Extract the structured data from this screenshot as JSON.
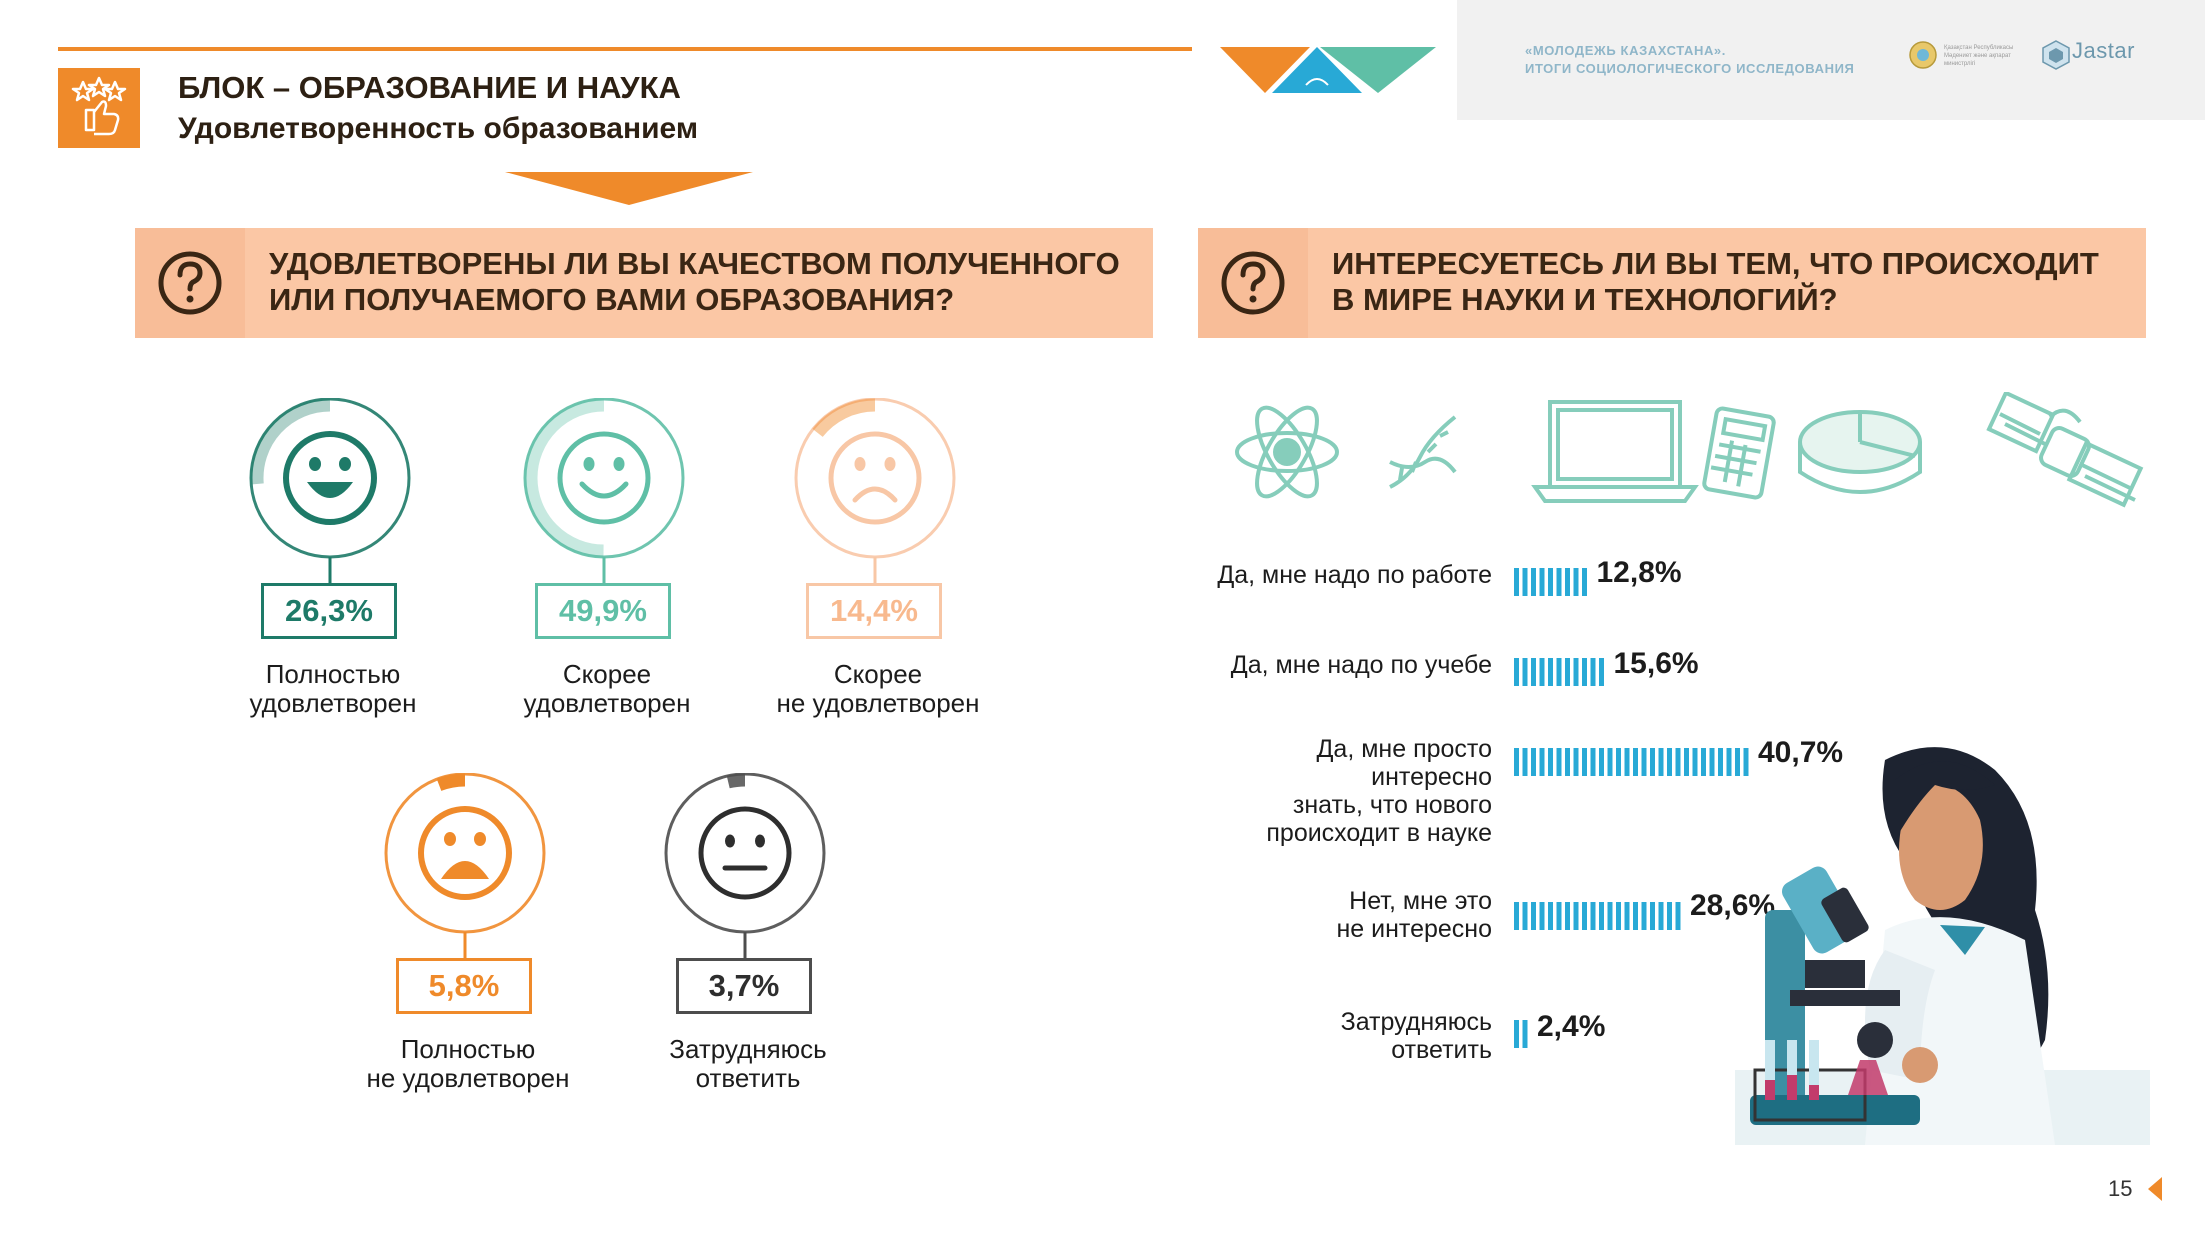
{
  "header": {
    "brand_lines": [
      "«Молодежь Казахстана».",
      "Итоги социологического исследования"
    ],
    "emblem_caption": "Қазақстан Республикасы Мәдениет және ақпарат министрлігі",
    "jastar_label": "Jastar",
    "section_title": "БЛОК – ОБРАЗОВАНИЕ И НАУКА",
    "section_subtitle": "Удовлетворенность образованием"
  },
  "question_left": {
    "line1": "Удовлетворены ли вы качеством полученного",
    "line2": "или получаемого вами образования?"
  },
  "question_right": {
    "line1": "Интересуетесь ли вы тем, что происходит",
    "line2": "в мире науки и технологий?"
  },
  "colors": {
    "orange": "#ef8a2a",
    "peach": "#fbc7a5",
    "dark_teal": "#1e7a68",
    "teal": "#5fbfa6",
    "light_peach": "#f8c7a6",
    "gray": "#4d4d4d",
    "bar_blue": "#28a9d6"
  },
  "chart_data": [
    {
      "type": "pie",
      "title": "Удовлетворены ли вы качеством полученного или получаемого вами образования?",
      "categories": [
        "Полностью удовлетворен",
        "Скорее удовлетворен",
        "Скорее не удовлетворен",
        "Полностью не удовлетворен",
        "Затрудняюсь ответить"
      ],
      "values": [
        26.3,
        49.9,
        14.4,
        5.8,
        3.7
      ],
      "value_labels": [
        "26,3%",
        "49,9%",
        "14,4%",
        "5,8%",
        "3,7%"
      ],
      "label_lines": [
        [
          "Полностью",
          "удовлетворен"
        ],
        [
          "Скорее",
          "удовлетворен"
        ],
        [
          "Скорее",
          "не удовлетворен"
        ],
        [
          "Полностью",
          "не удовлетворен"
        ],
        [
          "Затрудняюсь",
          "ответить"
        ]
      ],
      "icons": [
        "laughing-face-icon",
        "smiling-face-icon",
        "frowning-face-icon",
        "sad-face-icon",
        "neutral-face-icon"
      ],
      "colors": [
        "#1e7a68",
        "#5fbfa6",
        "#f8c7a6",
        "#ef8a2a",
        "#4d4d4d"
      ]
    },
    {
      "type": "bar",
      "title": "Интересуетесь ли вы тем, что происходит в мире науки и технологий?",
      "categories": [
        "Да, мне надо по работе",
        "Да, мне надо по учебе",
        "Да, мне просто интересно знать, что нового происходит в науке",
        "Нет, мне это не интересно",
        "Затрудняюсь ответить"
      ],
      "values": [
        12.8,
        15.6,
        40.7,
        28.6,
        2.4
      ],
      "value_labels": [
        "12,8%",
        "15,6%",
        "40,7%",
        "28,6%",
        "2,4%"
      ],
      "label_lines": [
        [
          "Да, мне надо по работе"
        ],
        [
          "Да, мне надо по учебе"
        ],
        [
          "Да, мне просто",
          "интересно",
          "знать, что нового",
          "происходит в науке"
        ],
        [
          "Нет, мне это",
          "не интересно"
        ],
        [
          "Затрудняюсь",
          "ответить"
        ]
      ],
      "color": "#28a9d6"
    }
  ],
  "science_icons": [
    "atom-icon",
    "dna-icon",
    "laptop-icon",
    "calculator-icon",
    "pie-chart-icon",
    "satellite-icon"
  ],
  "illustration": "scientist-with-microscope-illustration",
  "page_number": "15"
}
